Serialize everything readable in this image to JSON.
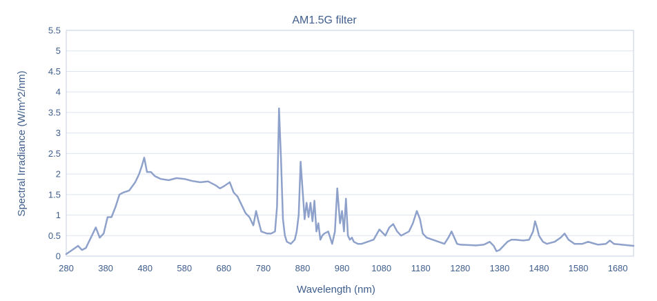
{
  "chart_data": {
    "type": "line",
    "title": "AM1.5G filter",
    "xlabel": "Wavelength (nm)",
    "ylabel": "Spectral Irradiance (W/m^2/nm)",
    "xlim": [
      280,
      1720
    ],
    "ylim": [
      0,
      5.5
    ],
    "xticks": [
      280,
      380,
      480,
      580,
      680,
      780,
      880,
      980,
      1080,
      1180,
      1280,
      1380,
      1480,
      1580,
      1680
    ],
    "yticks": [
      0,
      0.5,
      1,
      1.5,
      2,
      2.5,
      3,
      3.5,
      4,
      4.5,
      5,
      5.5
    ],
    "ytick_labels": [
      "0",
      "0.5",
      "1",
      "1.5",
      "2",
      "2.5",
      "3",
      "3.5",
      "4",
      "4.5",
      "5",
      "5.5"
    ],
    "grid": true,
    "colors": {
      "line": "#8ea1cb",
      "grid": "#dde3ef",
      "axis": "#c4cee2",
      "text": "#3f5e8c"
    },
    "series": [
      {
        "x": [
          280,
          295,
          310,
          320,
          330,
          345,
          355,
          365,
          375,
          385,
          395,
          405,
          415,
          425,
          440,
          455,
          465,
          472,
          478,
          485,
          495,
          505,
          520,
          540,
          560,
          580,
          600,
          620,
          640,
          660,
          670,
          680,
          695,
          705,
          715,
          725,
          735,
          745,
          755,
          762,
          768,
          775,
          790,
          800,
          810,
          815,
          820,
          825,
          830,
          835,
          840,
          850,
          860,
          865,
          870,
          875,
          880,
          885,
          890,
          895,
          900,
          905,
          910,
          915,
          920,
          925,
          930,
          935,
          945,
          955,
          962,
          968,
          975,
          980,
          985,
          990,
          995,
          1000,
          1005,
          1010,
          1020,
          1030,
          1045,
          1060,
          1075,
          1090,
          1100,
          1110,
          1120,
          1130,
          1140,
          1150,
          1160,
          1170,
          1178,
          1185,
          1195,
          1210,
          1225,
          1240,
          1250,
          1258,
          1265,
          1272,
          1280,
          1300,
          1320,
          1340,
          1355,
          1365,
          1372,
          1380,
          1390,
          1400,
          1410,
          1420,
          1440,
          1455,
          1465,
          1470,
          1475,
          1480,
          1490,
          1500,
          1520,
          1535,
          1545,
          1555,
          1570,
          1590,
          1605,
          1615,
          1630,
          1650,
          1660,
          1670,
          1690,
          1720
        ],
        "values": [
          0.05,
          0.15,
          0.25,
          0.15,
          0.2,
          0.5,
          0.7,
          0.45,
          0.55,
          0.95,
          0.95,
          1.2,
          1.5,
          1.55,
          1.6,
          1.8,
          2.0,
          2.2,
          2.4,
          2.05,
          2.05,
          1.95,
          1.88,
          1.85,
          1.9,
          1.88,
          1.83,
          1.8,
          1.82,
          1.72,
          1.65,
          1.7,
          1.8,
          1.55,
          1.45,
          1.25,
          1.05,
          0.95,
          0.75,
          1.1,
          0.85,
          0.6,
          0.55,
          0.55,
          0.6,
          1.2,
          3.6,
          2.4,
          0.9,
          0.5,
          0.35,
          0.3,
          0.4,
          0.6,
          1.0,
          2.3,
          1.6,
          0.9,
          1.3,
          0.95,
          1.3,
          0.85,
          1.35,
          0.6,
          0.8,
          0.4,
          0.5,
          0.55,
          0.6,
          0.3,
          0.6,
          1.65,
          0.8,
          1.1,
          0.6,
          1.4,
          0.5,
          0.4,
          0.45,
          0.35,
          0.3,
          0.3,
          0.35,
          0.4,
          0.65,
          0.5,
          0.7,
          0.78,
          0.6,
          0.5,
          0.55,
          0.6,
          0.8,
          1.1,
          0.9,
          0.55,
          0.45,
          0.4,
          0.35,
          0.3,
          0.45,
          0.6,
          0.45,
          0.3,
          0.28,
          0.27,
          0.26,
          0.28,
          0.35,
          0.25,
          0.12,
          0.15,
          0.25,
          0.35,
          0.4,
          0.4,
          0.38,
          0.4,
          0.6,
          0.85,
          0.7,
          0.5,
          0.35,
          0.3,
          0.35,
          0.45,
          0.55,
          0.4,
          0.3,
          0.3,
          0.35,
          0.32,
          0.28,
          0.3,
          0.38,
          0.3,
          0.28,
          0.25
        ]
      }
    ]
  }
}
